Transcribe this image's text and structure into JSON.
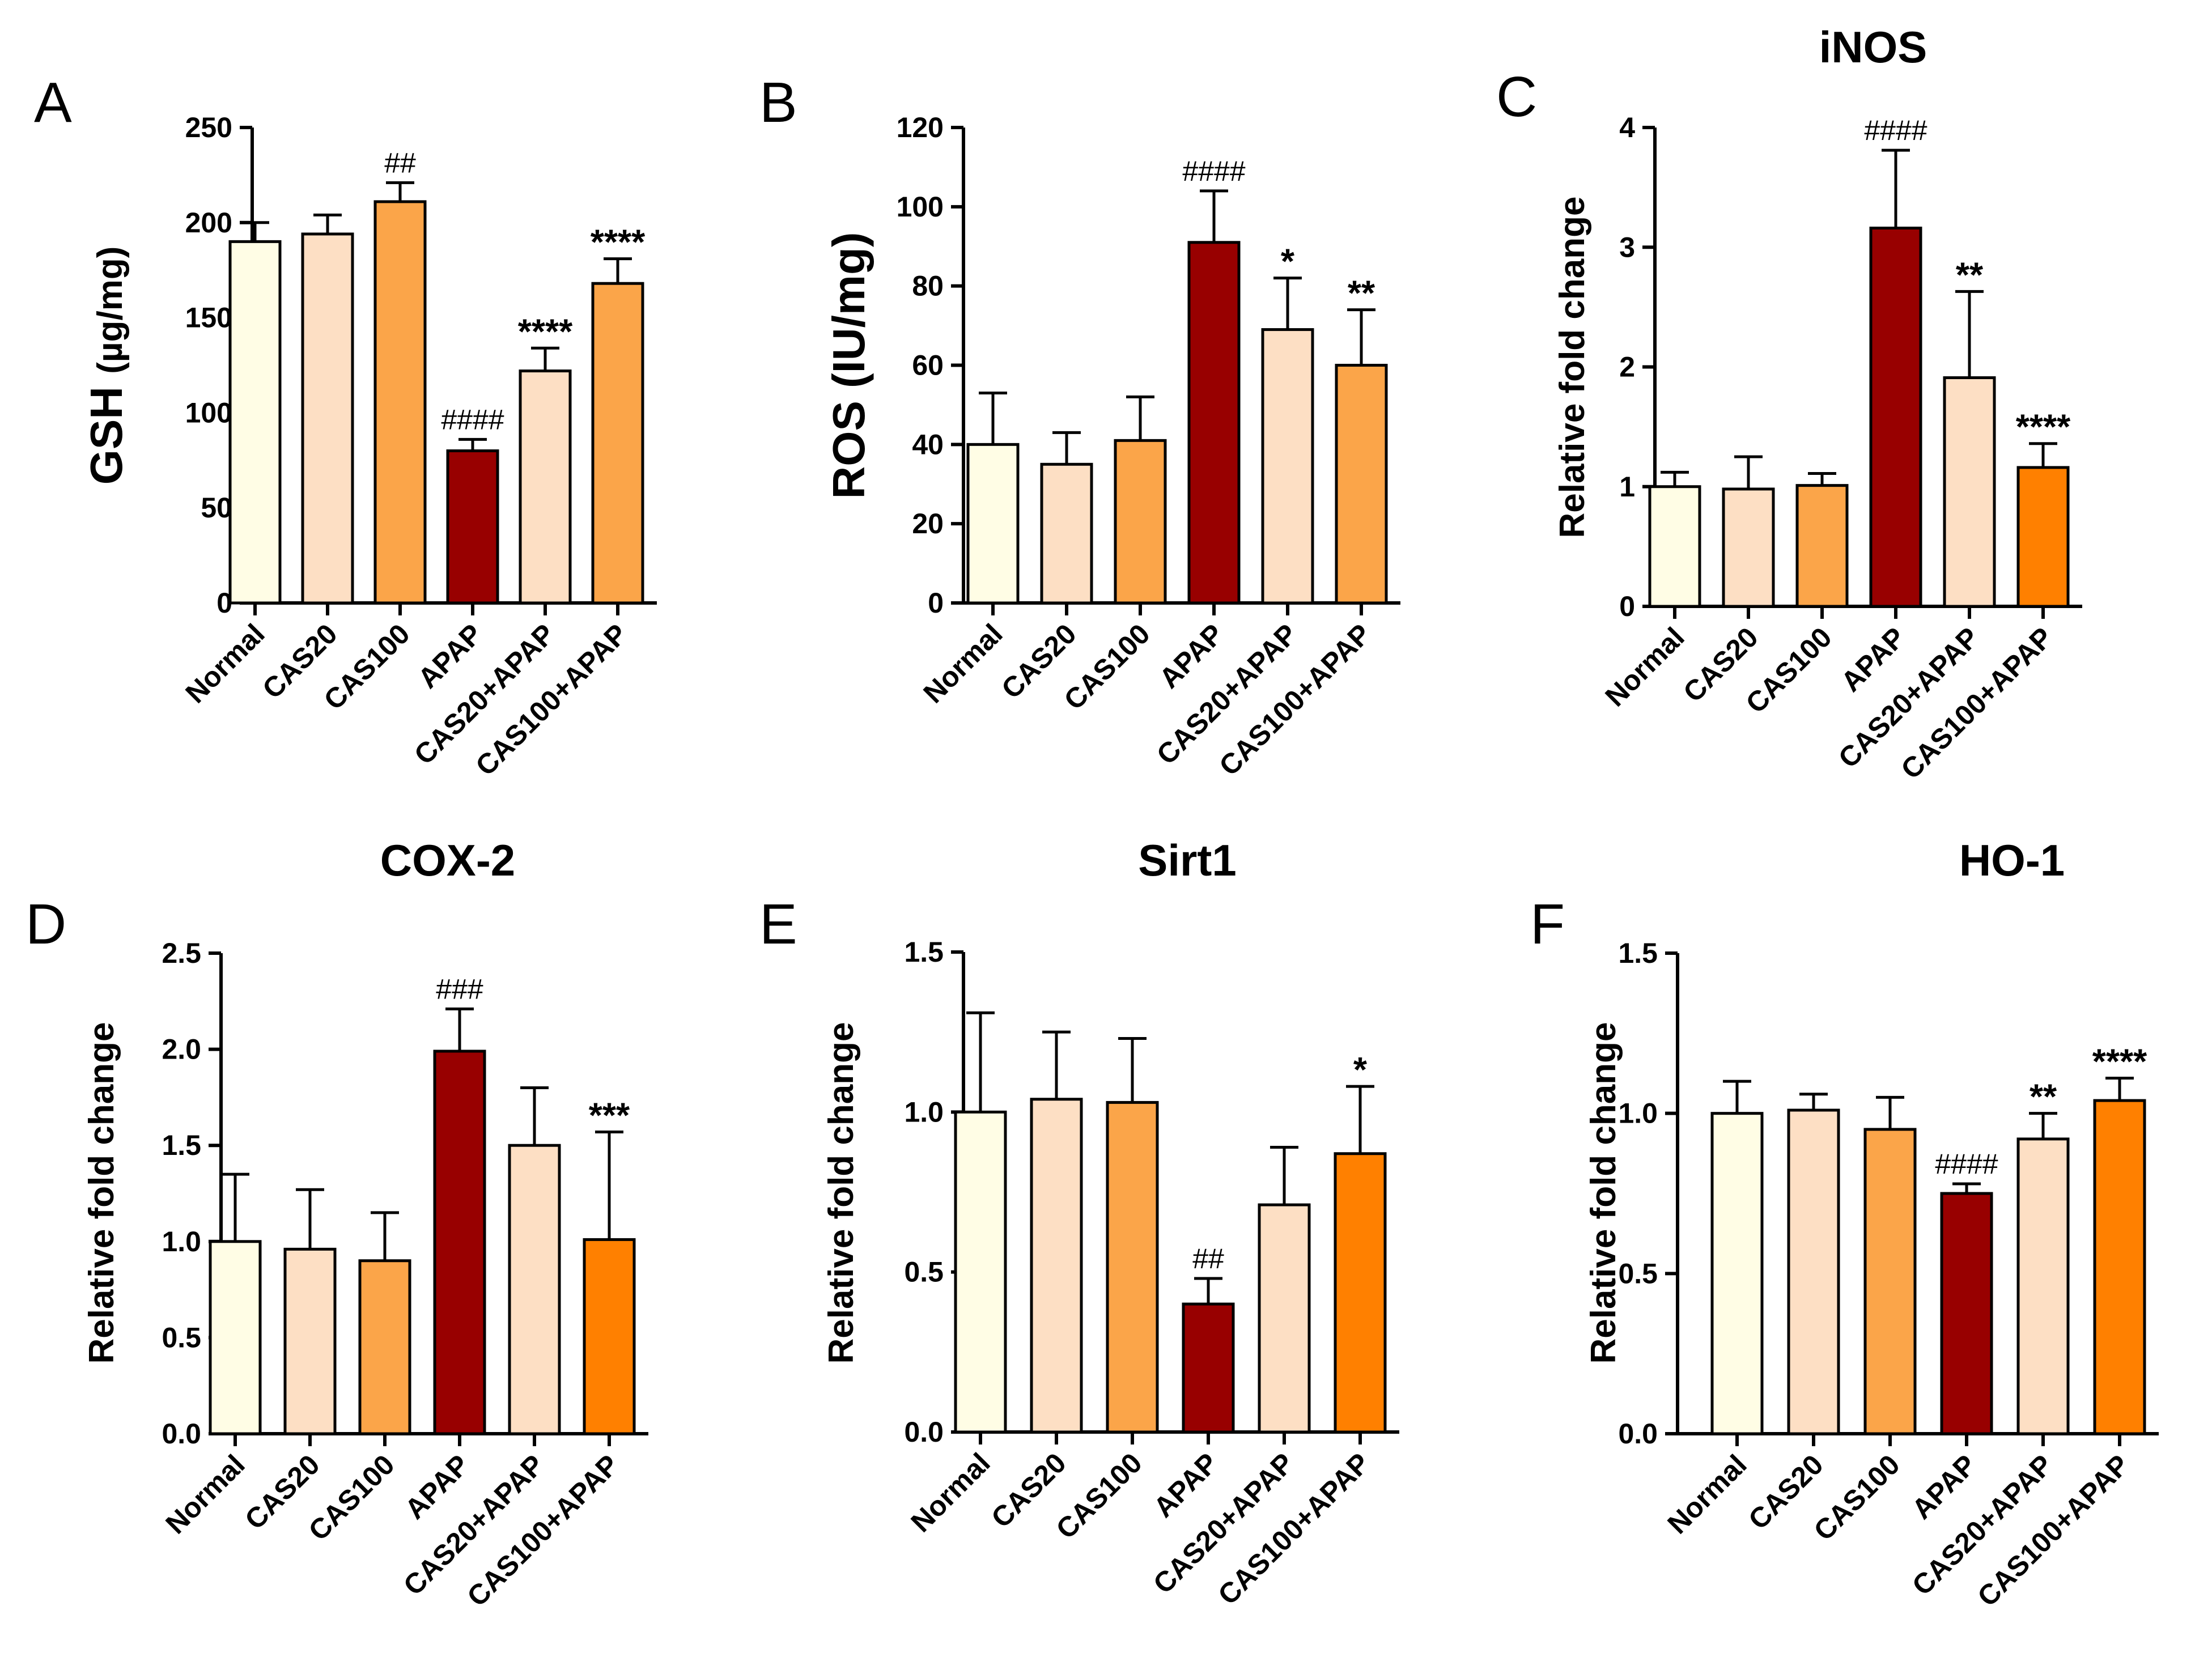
{
  "chart_data": [
    {
      "id": "A",
      "type": "bar",
      "panel_letter": "A",
      "title": "",
      "ylabel_main": "GSH",
      "ylabel_unit": "(µg/mg)",
      "ylim": [
        0,
        250
      ],
      "yticks": [
        0,
        50,
        100,
        150,
        200,
        250
      ],
      "ytick_labels": [
        "0",
        "50",
        "100",
        "150",
        "200",
        "250"
      ],
      "categories": [
        "Normal",
        "CAS20",
        "CAS100",
        "APAP",
        "CAS20+APAP",
        "CAS100+APAP"
      ],
      "values": [
        190,
        194,
        211,
        80,
        122,
        168
      ],
      "errors": [
        10,
        10,
        10,
        6,
        12,
        13
      ],
      "annotations": [
        "",
        "",
        "##",
        "####",
        "****",
        "****"
      ],
      "colors": [
        "#FFFDE5",
        "#FDDFC4",
        "#FBA549",
        "#980000",
        "#FDDFC4",
        "#FBA549"
      ]
    },
    {
      "id": "B",
      "type": "bar",
      "panel_letter": "B",
      "title": "",
      "ylabel_main": "ROS (IU/mg)",
      "ylabel_unit": "",
      "ylim": [
        0,
        120
      ],
      "yticks": [
        0,
        20,
        40,
        60,
        80,
        100,
        120
      ],
      "ytick_labels": [
        "0",
        "20",
        "40",
        "60",
        "80",
        "100",
        "120"
      ],
      "categories": [
        "Normal",
        "CAS20",
        "CAS100",
        "APAP",
        "CAS20+APAP",
        "CAS100+APAP"
      ],
      "values": [
        40,
        35,
        41,
        91,
        69,
        60
      ],
      "errors": [
        13,
        8,
        11,
        13,
        13,
        14
      ],
      "annotations": [
        "",
        "",
        "",
        "####",
        "*",
        "**"
      ],
      "colors": [
        "#FFFDE5",
        "#FDDFC4",
        "#FBA549",
        "#980000",
        "#FDDFC4",
        "#FBA549"
      ]
    },
    {
      "id": "C",
      "type": "bar",
      "panel_letter": "C",
      "title": "iNOS",
      "ylabel_main": "Relative fold change",
      "ylabel_unit": "",
      "ylim": [
        0,
        4
      ],
      "yticks": [
        0,
        1,
        2,
        3,
        4
      ],
      "ytick_labels": [
        "0",
        "1",
        "2",
        "3",
        "4"
      ],
      "categories": [
        "Normal",
        "CAS20",
        "CAS100",
        "APAP",
        "CAS20+APAP",
        "CAS100+APAP"
      ],
      "values": [
        1.0,
        0.98,
        1.01,
        3.16,
        1.91,
        1.16
      ],
      "errors": [
        0.12,
        0.27,
        0.1,
        0.65,
        0.72,
        0.2
      ],
      "annotations": [
        "",
        "",
        "",
        "####",
        "**",
        "****"
      ],
      "colors": [
        "#FFFDE5",
        "#FDDFC4",
        "#FBA549",
        "#980000",
        "#FDDFC4",
        "#FF8000"
      ]
    },
    {
      "id": "D",
      "type": "bar",
      "panel_letter": "D",
      "title": "COX-2",
      "ylabel_main": "Relative fold change",
      "ylabel_unit": "",
      "ylim": [
        0,
        2.5
      ],
      "yticks": [
        0,
        0.5,
        1.0,
        1.5,
        2.0,
        2.5
      ],
      "ytick_labels": [
        "0.0",
        "0.5",
        "1.0",
        "1.5",
        "2.0",
        "2.5"
      ],
      "categories": [
        "Normal",
        "CAS20",
        "CAS100",
        "APAP",
        "CAS20+APAP",
        "CAS100+APAP"
      ],
      "values": [
        1.0,
        0.96,
        0.9,
        1.99,
        1.5,
        1.01
      ],
      "errors": [
        0.35,
        0.31,
        0.25,
        0.22,
        0.3,
        0.56
      ],
      "annotations": [
        "",
        "",
        "",
        "###",
        "",
        "***"
      ],
      "colors": [
        "#FFFDE5",
        "#FDDFC4",
        "#FBA549",
        "#980000",
        "#FDDFC4",
        "#FF8000"
      ]
    },
    {
      "id": "E",
      "type": "bar",
      "panel_letter": "E",
      "title": "Sirt1",
      "ylabel_main": "Relative fold change",
      "ylabel_unit": "",
      "ylim": [
        0,
        1.5
      ],
      "yticks": [
        0,
        0.5,
        1.0,
        1.5
      ],
      "ytick_labels": [
        "0.0",
        "0.5",
        "1.0",
        "1.5"
      ],
      "categories": [
        "Normal",
        "CAS20",
        "CAS100",
        "APAP",
        "CAS20+APAP",
        "CAS100+APAP"
      ],
      "values": [
        1.0,
        1.04,
        1.03,
        0.4,
        0.71,
        0.87
      ],
      "errors": [
        0.31,
        0.21,
        0.2,
        0.08,
        0.18,
        0.21
      ],
      "annotations": [
        "",
        "",
        "",
        "##",
        "",
        "*"
      ],
      "colors": [
        "#FFFDE5",
        "#FDDFC4",
        "#FBA549",
        "#980000",
        "#FDDFC4",
        "#FF8000"
      ]
    },
    {
      "id": "F",
      "type": "bar",
      "panel_letter": "F",
      "title": "HO-1",
      "ylabel_main": "Relative fold change",
      "ylabel_unit": "",
      "ylim": [
        0,
        1.5
      ],
      "yticks": [
        0,
        0.5,
        1.0,
        1.5
      ],
      "ytick_labels": [
        "0.0",
        "0.5",
        "1.0",
        "1.5"
      ],
      "categories": [
        "Normal",
        "CAS20",
        "CAS100",
        "APAP",
        "CAS20+APAP",
        "CAS100+APAP"
      ],
      "values": [
        1.0,
        1.01,
        0.95,
        0.75,
        0.92,
        1.04
      ],
      "errors": [
        0.1,
        0.05,
        0.1,
        0.03,
        0.08,
        0.07
      ],
      "annotations": [
        "",
        "",
        "",
        "####",
        "**",
        "****"
      ],
      "colors": [
        "#FFFDE5",
        "#FDDFC4",
        "#FBA549",
        "#980000",
        "#FDDFC4",
        "#FF8000"
      ]
    }
  ]
}
